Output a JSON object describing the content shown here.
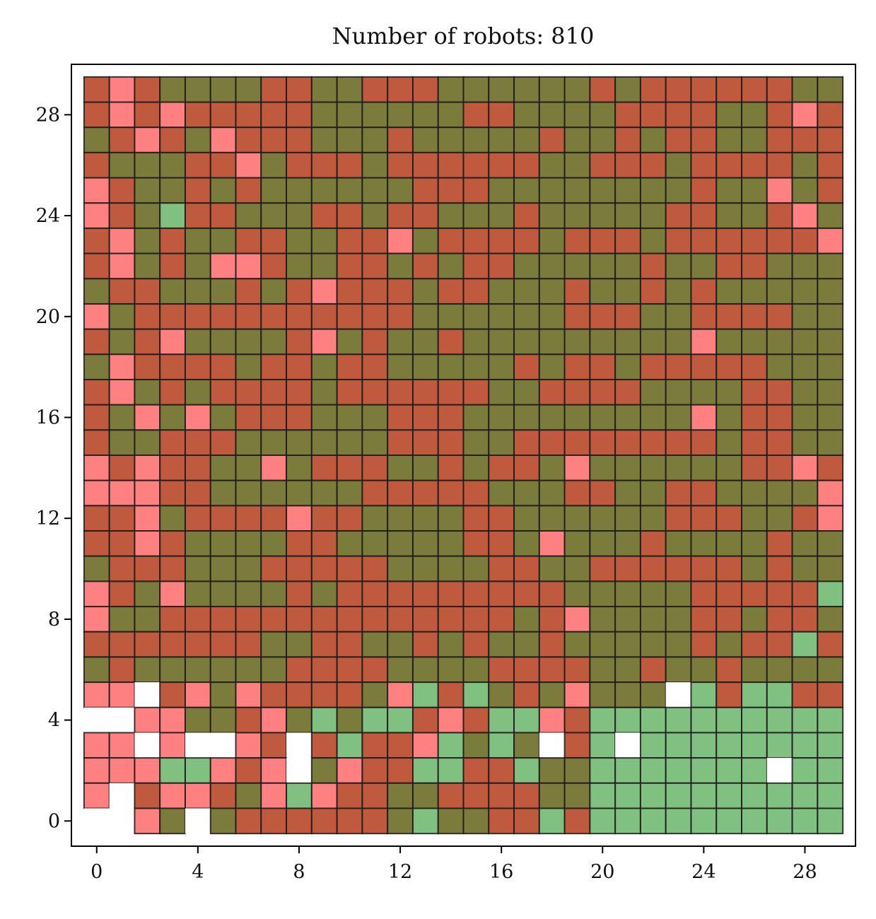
{
  "chart_data": {
    "type": "heatmap",
    "title": "Number of robots: 810",
    "xlabel": "",
    "ylabel": "",
    "x_ticks": [
      0,
      4,
      8,
      12,
      16,
      20,
      24,
      28
    ],
    "y_ticks": [
      0,
      4,
      8,
      12,
      16,
      20,
      24,
      28
    ],
    "xlim": [
      -1,
      30
    ],
    "ylim": [
      -1,
      30
    ],
    "grid": "30x30 cells, row index 0 at bottom",
    "legend": "none",
    "encoding": {
      "R": {
        "meaning": "red cell",
        "color": "#c05a3e"
      },
      "P": {
        "meaning": "pink cell",
        "color": "#ff8080"
      },
      "O": {
        "meaning": "olive cell",
        "color": "#7b7b3c"
      },
      "G": {
        "meaning": "green cell",
        "color": "#80c080"
      },
      "W": {
        "meaning": "empty cell",
        "color": "#ffffff"
      }
    },
    "rows_top_to_bottom": [
      "RPROOOORROORRROOOOOORORRRRRROO",
      "RPRPRRRRROOOOOORROOOORRRROORPR",
      "ORPROPRRROOOROOOOOROORORROORRR",
      "ROOORRPORRRORRRRRROORRRORRRROR",
      "PROOROROOOOOORRROOOOOOOOROOPOR",
      "PROGRROOORRORROOOROOOOORROORPO",
      "RPOROORROORRPORRRRORRRORRRRRRP",
      "RPOROPPROORRORORROOOOOROORROOO",
      "ORROOORORPRRRORROOOROOROROOOOO",
      "PORRRRRRRRRRROOOOOORRROORRRROO",
      "RORPOOOORPOROOROOOOOOOOOPOOOOO",
      "OPRRRRORRORROOOOORORRORRRRROOO",
      "RPORORRRRORRRRRROORRRROOOORROO",
      "ROPOPORRROOORRROOOOOOOOOPORROO",
      "ROORRROOOOOORRROORRRRRRRRORROO",
      "PRPRROOPORRROORORROPOOOOOORRPR",
      "PPPRROOOOOORRRRROOORROORROOOOP",
      "RRPORRRRPRROOOORROOOOOORRROORP",
      "RRPROOOORROOOOORROPOOOROOOOROO",
      "ORRROOORRRRROOOORROORRRRRROROO",
      "PROPOOOORORRRRRRRRROOOOORRRRRG",
      "POORRRRRRRRRRRRRRORPOOOORRORRO",
      "RRRRRRROORROOROROOROOOOORORRGR",
      "OROOOOOORRRROOOORRRROOROOROOOO",
      "PPWRPOPRRRROPGRGOROPOOOWGRGGRR",
      "WWPPOORPOGOGGRPRGGPRGGGGGGGGGG",
      "PPWPWWPRWRGRRPGOGOWRGWGGGGGGGG",
      "PPPGGPRPWOPRRGGRRGOOGGGGGGGWGG",
      "PWRPPROPGPRROORRRROOGGGGGGGGGG",
      "WWPOWORRRRRROGOORRGRGGGGGGGGGG"
    ]
  }
}
